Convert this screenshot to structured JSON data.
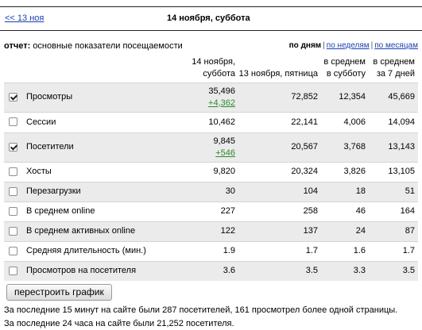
{
  "header": {
    "back_link": "<< 13 ноя",
    "title": "14 ноября, суббота"
  },
  "report": {
    "label": "отчет:",
    "text": "основные показатели посещаемости",
    "periods": [
      "по дням",
      "по неделям",
      "по месяцам"
    ]
  },
  "table": {
    "headers": [
      "14 ноября, суббота",
      "13 ноября, пятница",
      "в среднем в субботу",
      "в среднем за 7 дней"
    ],
    "rows": [
      {
        "label": "Просмотры",
        "checked": true,
        "today": "35,496",
        "delta": "+4,362",
        "yesterday": "72,852",
        "avg_sat": "12,354",
        "avg_7": "45,669"
      },
      {
        "label": "Сессии",
        "checked": false,
        "today": "10,462",
        "delta": "",
        "yesterday": "22,141",
        "avg_sat": "4,006",
        "avg_7": "14,094"
      },
      {
        "label": "Посетители",
        "checked": true,
        "today": "9,845",
        "delta": "+546",
        "yesterday": "20,567",
        "avg_sat": "3,768",
        "avg_7": "13,143"
      },
      {
        "label": "Хосты",
        "checked": false,
        "today": "9,820",
        "delta": "",
        "yesterday": "20,324",
        "avg_sat": "3,826",
        "avg_7": "13,105"
      },
      {
        "label": "Перезагрузки",
        "checked": false,
        "today": "30",
        "delta": "",
        "yesterday": "104",
        "avg_sat": "18",
        "avg_7": "51"
      },
      {
        "label": "В среднем online",
        "checked": false,
        "today": "227",
        "delta": "",
        "yesterday": "258",
        "avg_sat": "46",
        "avg_7": "164"
      },
      {
        "label": "В среднем активных online",
        "checked": false,
        "today": "122",
        "delta": "",
        "yesterday": "137",
        "avg_sat": "24",
        "avg_7": "87"
      },
      {
        "label": "Средняя длительность (мин.)",
        "checked": false,
        "today": "1.9",
        "delta": "",
        "yesterday": "1.7",
        "avg_sat": "1.6",
        "avg_7": "1.7"
      },
      {
        "label": "Просмотров на посетителя",
        "checked": false,
        "today": "3.6",
        "delta": "",
        "yesterday": "3.5",
        "avg_sat": "3.3",
        "avg_7": "3.5"
      }
    ]
  },
  "button_label": "перестроить график",
  "notes": [
    "За последние 15 минут на сайте были 287 посетителей, 161 просмотрел более одной страницы.",
    "За последние 24 часа на сайте были 21,252 посетителя."
  ],
  "colors": {
    "link": "#1a3fb3",
    "delta": "#2a8a2a",
    "row_shade": "#ebebeb"
  }
}
